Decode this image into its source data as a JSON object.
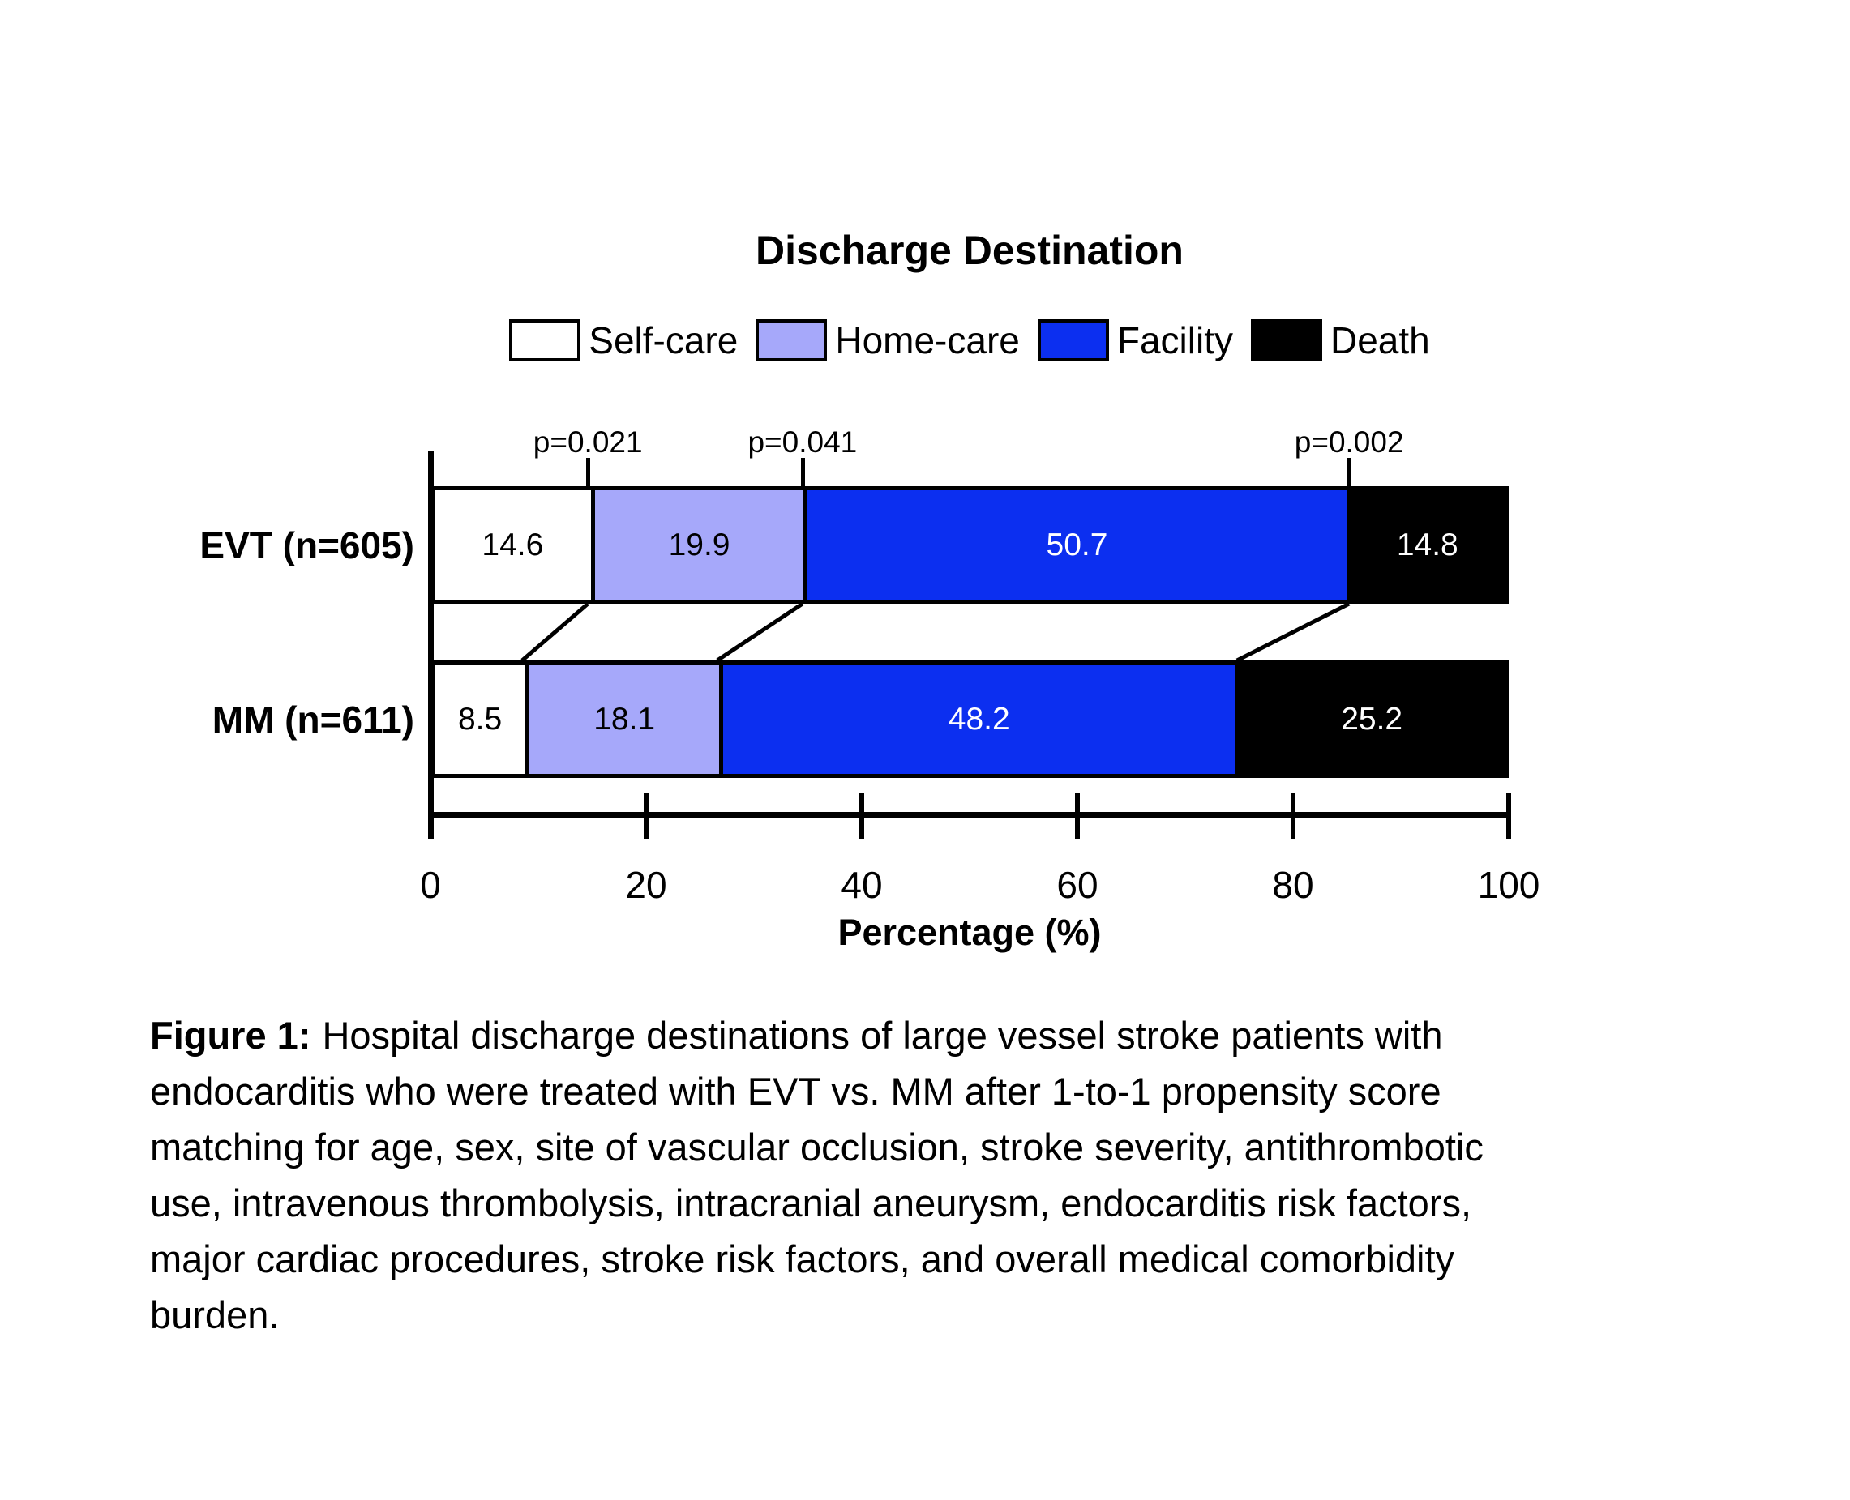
{
  "chart_data": {
    "type": "bar",
    "orientation": "horizontal",
    "stacked": true,
    "title": "Discharge Destination",
    "xlabel": "Percentage (%)",
    "xlim": [
      0,
      100
    ],
    "xticks": [
      0,
      20,
      40,
      60,
      80,
      100
    ],
    "grid": false,
    "legend_position": "top",
    "categories": [
      "EVT (n=605)",
      "MM (n=611)"
    ],
    "series": [
      {
        "name": "Self-care",
        "color": "#FFFFFF",
        "text_color": "#000000",
        "values": [
          14.6,
          8.5
        ]
      },
      {
        "name": "Home-care",
        "color": "#A6A8FA",
        "text_color": "#000000",
        "values": [
          19.9,
          18.1
        ]
      },
      {
        "name": "Facility",
        "color": "#0C2FF0",
        "text_color": "#FFFFFF",
        "values": [
          50.7,
          48.2
        ]
      },
      {
        "name": "Death",
        "color": "#000000",
        "text_color": "#FFFFFF",
        "values": [
          14.8,
          25.2
        ]
      }
    ],
    "p_values": [
      {
        "label": "p=0.021",
        "x": 14.6
      },
      {
        "label": "p=0.041",
        "x": 34.5
      },
      {
        "label": "p=0.002",
        "x": 85.2
      }
    ],
    "connector_lines": [
      {
        "from_x": 14.6,
        "to_x": 8.5
      },
      {
        "from_x": 34.5,
        "to_x": 26.6
      },
      {
        "from_x": 85.2,
        "to_x": 74.8
      }
    ],
    "annotation_colors": {
      "axis": "#000000",
      "bar_border": "#000000"
    }
  },
  "caption": {
    "label": "Figure 1:",
    "text": "Hospital discharge destinations of large vessel stroke patients with\nendocarditis who were treated with EVT vs. MM after 1-to-1 propensity score\nmatching for age, sex, site of vascular occlusion, stroke severity, antithrombotic\nuse, intravenous thrombolysis, intracranial aneurysm, endocarditis risk factors,\nmajor cardiac procedures, stroke risk factors, and overall medical comorbidity\nburden."
  }
}
